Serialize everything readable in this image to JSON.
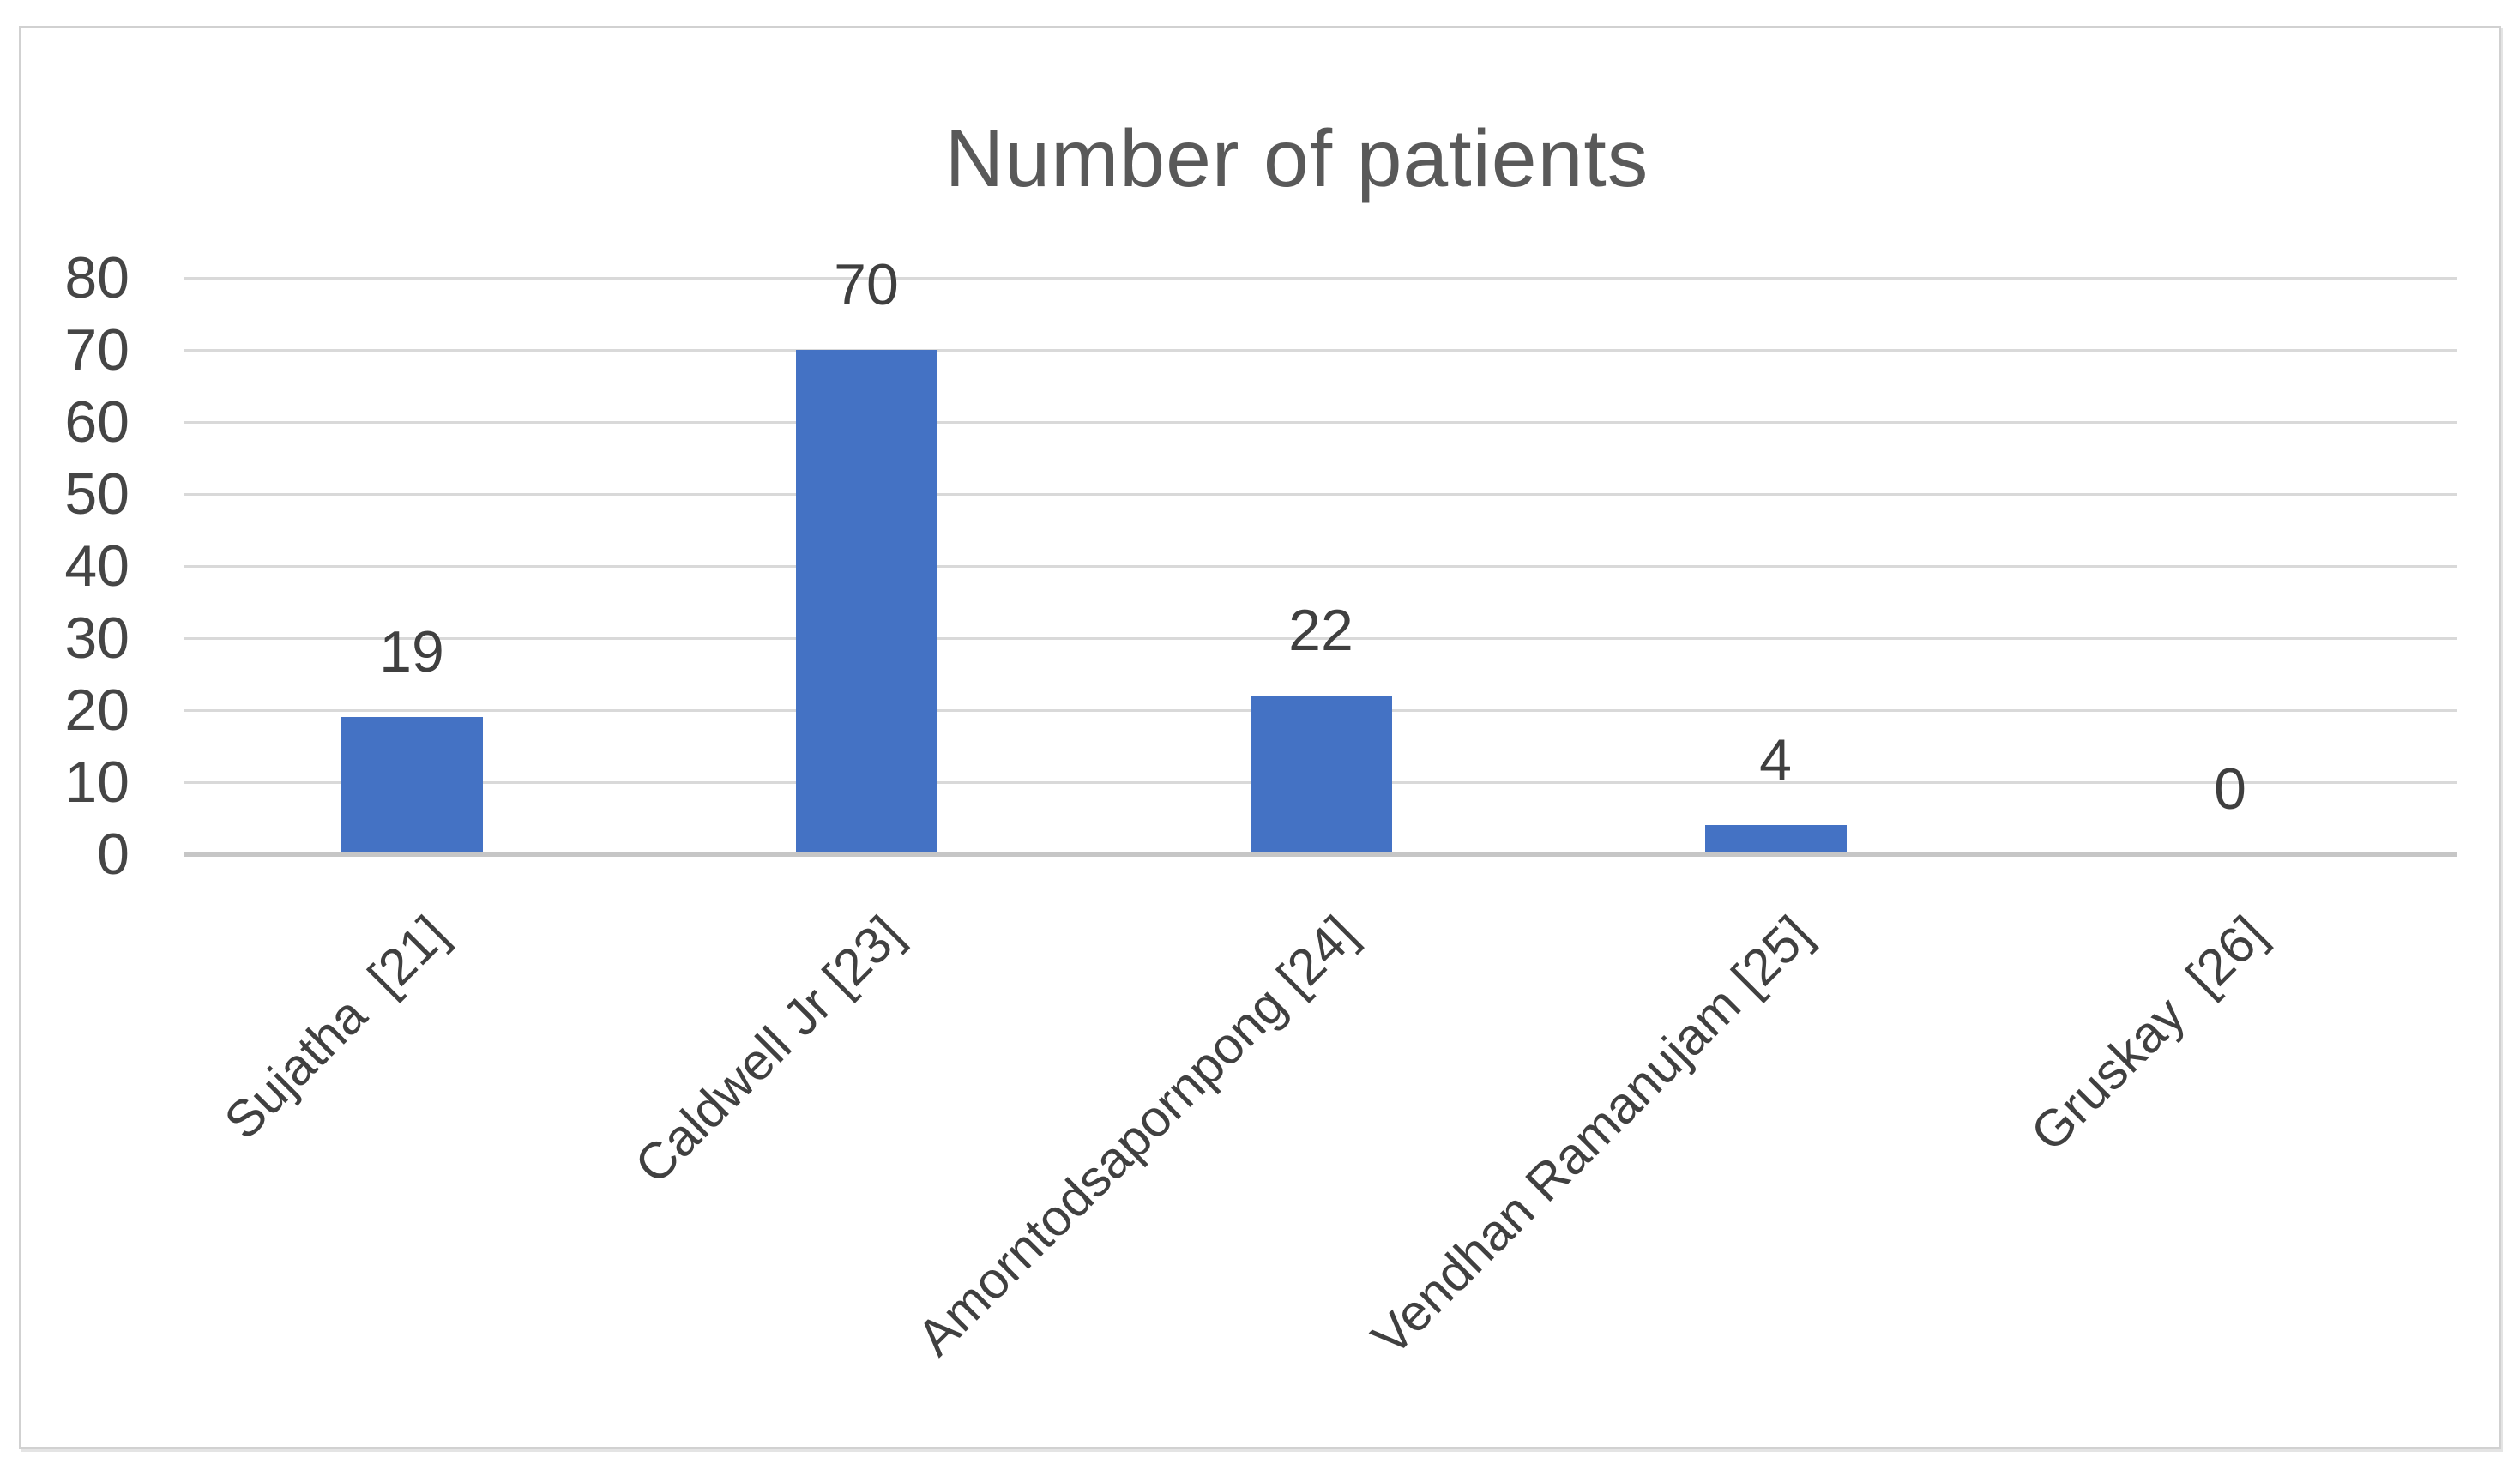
{
  "chart_data": {
    "type": "bar",
    "title": "Number of patients",
    "categories": [
      "Sujatha  [21]",
      "Caldwell Jr [23]",
      "Amorntodsapornpong [24]",
      "Vendhan Ramanujam [25]",
      "Gruskay  [26]"
    ],
    "values": [
      19,
      70,
      22,
      4,
      0
    ],
    "data_labels": [
      "19",
      "70",
      "22",
      "4",
      "0"
    ],
    "yticks": [
      80,
      70,
      60,
      50,
      40,
      30,
      20,
      10,
      0
    ],
    "ylim": [
      0,
      80
    ],
    "xlabel": "",
    "ylabel": "",
    "grid": true,
    "legend": "none",
    "colors": {
      "bar": "#4472C4",
      "gridline": "#d9d9d9",
      "axis_line": "#c6c6c6",
      "title_text": "#595959",
      "tick_text": "#454545",
      "label_text": "#3f3f3f",
      "frame_border": "#d1d1d1",
      "background": "#ffffff"
    }
  }
}
